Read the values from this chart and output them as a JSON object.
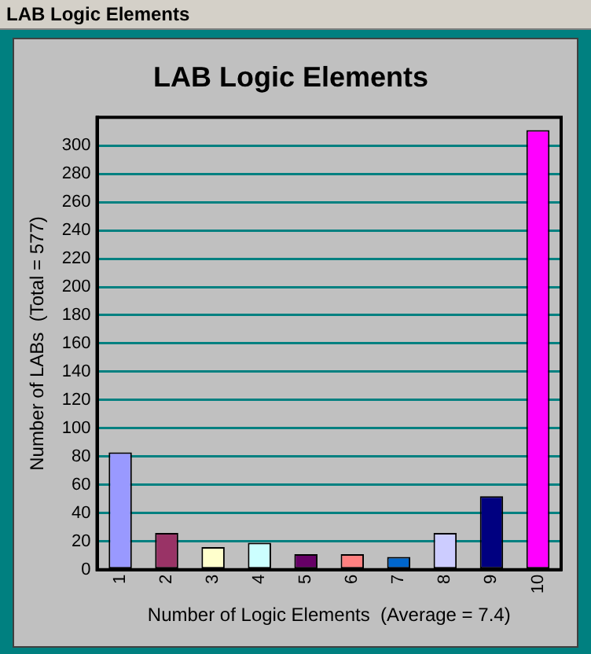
{
  "chart_data": {
    "type": "bar",
    "title": "LAB Logic Elements",
    "xlabel": "Number of Logic Elements  (Average = 7.4)",
    "ylabel": "Number of LABs  (Total = 577)",
    "annotations": [
      "LAB Logic Elements"
    ],
    "categories": [
      "1",
      "2",
      "3",
      "4",
      "5",
      "6",
      "7",
      "8",
      "9",
      "10"
    ],
    "values": [
      83,
      26,
      16,
      19,
      11,
      11,
      9,
      26,
      52,
      311
    ],
    "colors": [
      "#9999ff",
      "#993366",
      "#ffffcc",
      "#ccffff",
      "#660066",
      "#ff8080",
      "#0066cc",
      "#ccccff",
      "#000080",
      "#ff00ff"
    ],
    "ylim": [
      0,
      320
    ],
    "yticks": [
      0,
      20,
      40,
      60,
      80,
      100,
      120,
      140,
      160,
      180,
      200,
      220,
      240,
      260,
      280,
      300
    ],
    "grid": "y",
    "legend": false
  }
}
